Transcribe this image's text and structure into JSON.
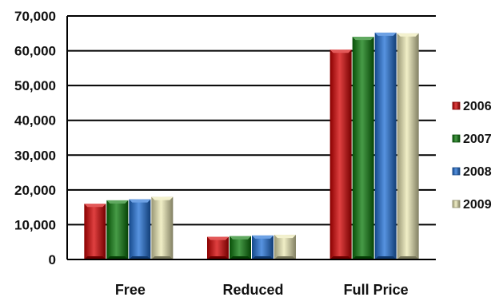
{
  "chart_data": {
    "type": "bar",
    "title": "",
    "xlabel": "",
    "ylabel": "",
    "categories": [
      "Free",
      "Reduced",
      "Full Price"
    ],
    "ylim": [
      0,
      70000
    ],
    "yticks": [
      "0",
      "10,000",
      "20,000",
      "30,000",
      "40,000",
      "50,000",
      "60,000",
      "70,000"
    ],
    "grid": true,
    "legend_position": "right",
    "series": [
      {
        "name": "2006",
        "color": "#d40000",
        "values": [
          16000,
          6500,
          60300
        ]
      },
      {
        "name": "2007",
        "color": "#0a7a0a",
        "values": [
          17000,
          6700,
          64000
        ]
      },
      {
        "name": "2008",
        "color": "#1f6fd6",
        "values": [
          17300,
          6900,
          65200
        ]
      },
      {
        "name": "2009",
        "color": "#ece9b4",
        "values": [
          18000,
          7100,
          65000
        ]
      }
    ]
  }
}
